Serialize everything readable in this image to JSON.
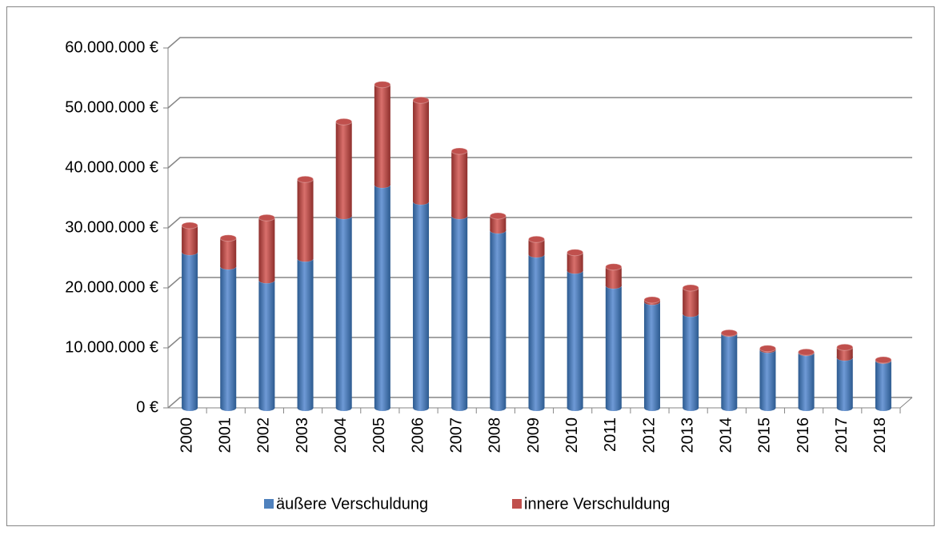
{
  "chart_data": {
    "type": "bar3d_stacked",
    "categories": [
      "2000",
      "2001",
      "2002",
      "2003",
      "2004",
      "2005",
      "2006",
      "2007",
      "2008",
      "2009",
      "2010",
      "2011",
      "2012",
      "2013",
      "2014",
      "2015",
      "2016",
      "2017",
      "2018"
    ],
    "series": [
      {
        "name": "äußere Verschuldung",
        "color": "#4f81bd",
        "values": [
          26000000,
          23600000,
          21300000,
          24900000,
          32000000,
          37200000,
          34400000,
          32000000,
          29600000,
          25600000,
          22900000,
          20400000,
          17700000,
          15700000,
          12400000,
          9700000,
          9200000,
          8400000,
          7900000
        ]
      },
      {
        "name": "innere Verschuldung",
        "color": "#c0504d",
        "values": [
          4400000,
          4700000,
          10400000,
          13200000,
          15700000,
          16700000,
          16900000,
          10800000,
          2400000,
          2500000,
          3000000,
          3100000,
          300000,
          4300000,
          100000,
          200000,
          100000,
          1700000,
          100000
        ]
      }
    ],
    "ylim": [
      0,
      60000000
    ],
    "yticks": [
      {
        "value": 0,
        "label": "0 €"
      },
      {
        "value": 10000000,
        "label": "10.000.000 €"
      },
      {
        "value": 20000000,
        "label": "20.000.000 €"
      },
      {
        "value": 30000000,
        "label": "30.000.000 €"
      },
      {
        "value": 40000000,
        "label": "40.000.000 €"
      },
      {
        "value": 50000000,
        "label": "50.000.000 €"
      },
      {
        "value": 60000000,
        "label": "60.000.000 €"
      }
    ],
    "grid": true,
    "legend": "bottom"
  }
}
